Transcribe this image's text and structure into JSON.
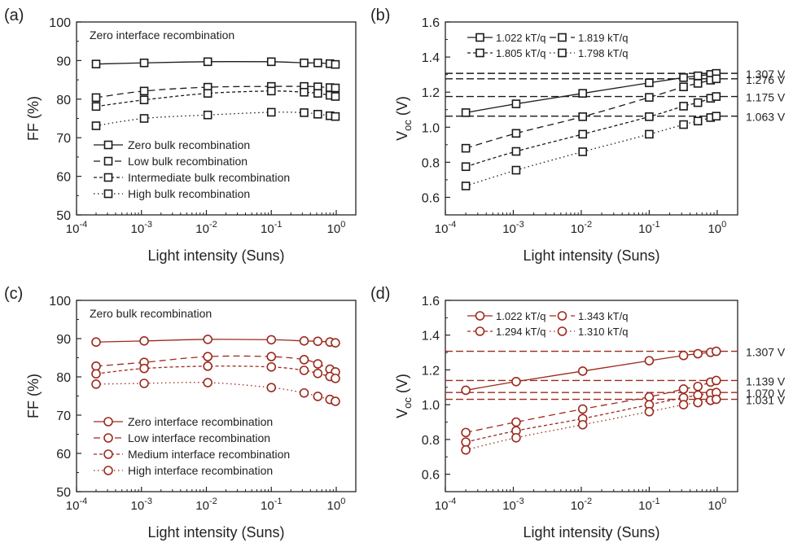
{
  "figure": {
    "colors": {
      "black": "#1a1a1a",
      "red": "#9c2a1e"
    },
    "xlabel": "Light intensity (Suns)"
  },
  "chart_data": [
    {
      "panel_label": "(a)",
      "type": "line",
      "color": "#1a1a1a",
      "marker": "square",
      "xscale": "log",
      "xlim": [
        0.0001,
        2
      ],
      "x_ticks": [
        0.0001,
        0.001,
        0.01,
        0.1,
        1
      ],
      "x_tick_labels": [
        [
          "10",
          "-4"
        ],
        [
          "10",
          "-3"
        ],
        [
          "10",
          "-2"
        ],
        [
          "10",
          "-1"
        ],
        [
          "10",
          "0"
        ]
      ],
      "ylim": [
        50,
        100
      ],
      "y_ticks": [
        50,
        60,
        70,
        80,
        90,
        100
      ],
      "ylabel": "FF (%)",
      "ylabel_sub": "",
      "xlabel": "Light intensity (Suns)",
      "annotation": "Zero interface recombination",
      "legend_position": "bottom-left",
      "x": [
        0.0002,
        0.0011,
        0.0105,
        0.1,
        0.32,
        0.52,
        0.8,
        0.97
      ],
      "series": [
        {
          "name": "Zero bulk recombination",
          "dash": "solid",
          "values": [
            89.1,
            89.4,
            89.7,
            89.7,
            89.4,
            89.4,
            89.2,
            89.0
          ]
        },
        {
          "name": "Low bulk recombination",
          "dash": "dashed",
          "values": [
            80.4,
            82.1,
            83.1,
            83.3,
            83.3,
            83.2,
            83.0,
            82.9
          ]
        },
        {
          "name": "Intermediate bulk recombination",
          "dash": "shortdash",
          "values": [
            78.1,
            79.8,
            81.5,
            82.1,
            81.8,
            81.5,
            81.0,
            80.7
          ]
        },
        {
          "name": "High bulk recombination",
          "dash": "dotted",
          "values": [
            73.1,
            75.0,
            75.9,
            76.6,
            76.5,
            76.1,
            75.7,
            75.5
          ]
        }
      ]
    },
    {
      "panel_label": "(b)",
      "type": "line",
      "color": "#1a1a1a",
      "marker": "square",
      "xscale": "log",
      "xlim": [
        0.0001,
        2
      ],
      "x_ticks": [
        0.0001,
        0.001,
        0.01,
        0.1,
        1
      ],
      "x_tick_labels": [
        [
          "10",
          "-4"
        ],
        [
          "10",
          "-3"
        ],
        [
          "10",
          "-2"
        ],
        [
          "10",
          "-1"
        ],
        [
          "10",
          "0"
        ]
      ],
      "ylim": [
        0.5,
        1.6
      ],
      "y_ticks": [
        0.6,
        0.8,
        1.0,
        1.2,
        1.4,
        1.6
      ],
      "y_tick_labels": [
        "0.6",
        "0.8",
        "1.0",
        "1.2",
        "1.4",
        "1.6"
      ],
      "ylabel": "V",
      "ylabel_sub": "oc",
      "ylabel_unit": " (V)",
      "xlabel": "Light intensity (Suns)",
      "legend_position": "top-left",
      "x": [
        0.0002,
        0.0011,
        0.0105,
        0.1,
        0.32,
        0.52,
        0.8,
        0.97
      ],
      "series": [
        {
          "name": "1.022 kT/q",
          "dash": "solid",
          "values": [
            1.083,
            1.133,
            1.193,
            1.253,
            1.283,
            1.293,
            1.301,
            1.307
          ]
        },
        {
          "name": "1.819 kT/q",
          "dash": "dashed",
          "values": [
            0.88,
            0.965,
            1.06,
            1.17,
            1.23,
            1.25,
            1.268,
            1.276
          ]
        },
        {
          "name": "1.805 kT/q",
          "dash": "shortdash",
          "values": [
            0.775,
            0.862,
            0.96,
            1.06,
            1.12,
            1.14,
            1.165,
            1.175
          ]
        },
        {
          "name": "1.798 kT/q",
          "dash": "dotted",
          "values": [
            0.665,
            0.755,
            0.86,
            0.96,
            1.015,
            1.035,
            1.055,
            1.063
          ]
        }
      ],
      "reference_lines": [
        {
          "value": 1.307,
          "label": "1.307 V"
        },
        {
          "value": 1.276,
          "label": "1.276 V"
        },
        {
          "value": 1.175,
          "label": "1.175 V"
        },
        {
          "value": 1.063,
          "label": "1.063 V"
        }
      ]
    },
    {
      "panel_label": "(c)",
      "type": "line",
      "color": "#9c2a1e",
      "marker": "circle",
      "xscale": "log",
      "xlim": [
        0.0001,
        2
      ],
      "x_ticks": [
        0.0001,
        0.001,
        0.01,
        0.1,
        1
      ],
      "x_tick_labels": [
        [
          "10",
          "-4"
        ],
        [
          "10",
          "-3"
        ],
        [
          "10",
          "-2"
        ],
        [
          "10",
          "-1"
        ],
        [
          "10",
          "0"
        ]
      ],
      "ylim": [
        50,
        100
      ],
      "y_ticks": [
        50,
        60,
        70,
        80,
        90,
        100
      ],
      "ylabel": "FF (%)",
      "ylabel_sub": "",
      "xlabel": "Light intensity (Suns)",
      "annotation": "Zero bulk recombination",
      "legend_position": "bottom-left",
      "x": [
        0.0002,
        0.0011,
        0.0105,
        0.1,
        0.32,
        0.52,
        0.8,
        0.97
      ],
      "series": [
        {
          "name": "Zero interface recombination",
          "dash": "solid",
          "values": [
            89.1,
            89.4,
            89.8,
            89.7,
            89.4,
            89.3,
            89.1,
            88.9
          ]
        },
        {
          "name": "Low interface recombination",
          "dash": "dashed",
          "values": [
            82.8,
            83.8,
            85.3,
            85.3,
            84.5,
            83.4,
            82.0,
            81.3
          ]
        },
        {
          "name": "Medium interface recombination",
          "dash": "shortdash",
          "values": [
            80.8,
            82.2,
            82.8,
            82.6,
            81.7,
            80.9,
            80.1,
            79.6
          ]
        },
        {
          "name": "High interface recombination",
          "dash": "dotted",
          "values": [
            78.1,
            78.3,
            78.5,
            77.2,
            75.8,
            74.9,
            74.1,
            73.6
          ]
        }
      ]
    },
    {
      "panel_label": "(d)",
      "type": "line",
      "color": "#9c2a1e",
      "marker": "circle",
      "xscale": "log",
      "xlim": [
        0.0001,
        2
      ],
      "x_ticks": [
        0.0001,
        0.001,
        0.01,
        0.1,
        1
      ],
      "x_tick_labels": [
        [
          "10",
          "-4"
        ],
        [
          "10",
          "-3"
        ],
        [
          "10",
          "-2"
        ],
        [
          "10",
          "-1"
        ],
        [
          "10",
          "0"
        ]
      ],
      "ylim": [
        0.5,
        1.6
      ],
      "y_ticks": [
        0.6,
        0.8,
        1.0,
        1.2,
        1.4,
        1.6
      ],
      "y_tick_labels": [
        "0.6",
        "0.8",
        "1.0",
        "1.2",
        "1.4",
        "1.6"
      ],
      "ylabel": "V",
      "ylabel_sub": "oc",
      "ylabel_unit": " (V)",
      "xlabel": "Light intensity (Suns)",
      "legend_position": "top-left",
      "x": [
        0.0002,
        0.0011,
        0.0105,
        0.1,
        0.32,
        0.52,
        0.8,
        0.97
      ],
      "series": [
        {
          "name": "1.022 kT/q",
          "dash": "solid",
          "values": [
            1.083,
            1.133,
            1.193,
            1.253,
            1.283,
            1.293,
            1.301,
            1.307
          ]
        },
        {
          "name": "1.343 kT/q",
          "dash": "dashed",
          "values": [
            0.84,
            0.9,
            0.975,
            1.045,
            1.09,
            1.105,
            1.13,
            1.139
          ]
        },
        {
          "name": "1.294 kT/q",
          "dash": "shortdash",
          "values": [
            0.785,
            0.85,
            0.92,
            1.0,
            1.04,
            1.055,
            1.065,
            1.07
          ]
        },
        {
          "name": "1.310 kT/q",
          "dash": "dotted",
          "values": [
            0.74,
            0.81,
            0.885,
            0.96,
            1.0,
            1.012,
            1.025,
            1.031
          ]
        }
      ],
      "reference_lines": [
        {
          "value": 1.307,
          "label": "1.307 V"
        },
        {
          "value": 1.139,
          "label": "1.139 V"
        },
        {
          "value": 1.07,
          "label": "1.070 V"
        },
        {
          "value": 1.031,
          "label": "1.031 V"
        }
      ]
    }
  ]
}
